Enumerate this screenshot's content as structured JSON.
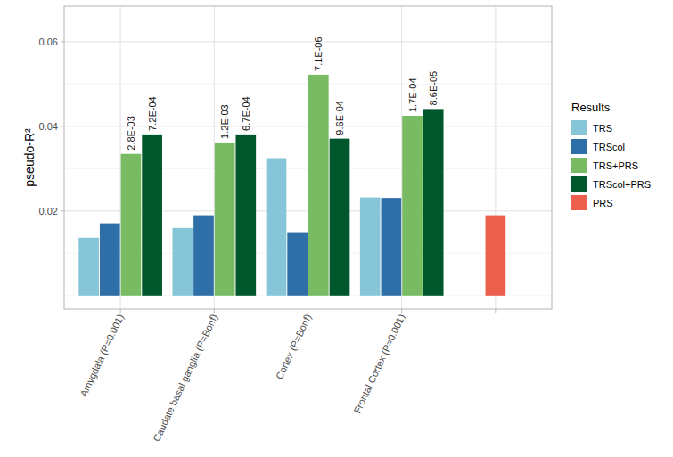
{
  "chart_data": {
    "type": "bar",
    "y_label": "pseudo-R²",
    "legend_title": "Results",
    "legend": "right",
    "grid": true,
    "categories": [
      "Amygdala (P=0.001)",
      "Caudate basal ganglia (P=Bonf)",
      "Cortex (P=Bonf)",
      "Frontal Cortex (P=0.001)",
      null
    ],
    "series": [
      {
        "name": "TRS",
        "color": "#87c6d8",
        "values": [
          0.0137,
          0.016,
          0.0325,
          0.0232,
          null
        ],
        "labels": [
          null,
          null,
          null,
          null,
          null
        ]
      },
      {
        "name": "TRScol",
        "color": "#2e6fa8",
        "values": [
          0.0171,
          0.019,
          0.015,
          0.0231,
          null
        ],
        "labels": [
          null,
          null,
          null,
          null,
          null
        ]
      },
      {
        "name": "TRS+PRS",
        "color": "#78bb63",
        "values": [
          0.0335,
          0.0362,
          0.0522,
          0.0425,
          null
        ],
        "labels": [
          "2.8E-03",
          "1.2E-03",
          "7.1E-06",
          "1.7E-04",
          null
        ]
      },
      {
        "name": "TRScol+PRS",
        "color": "#00572b",
        "values": [
          0.0381,
          0.0381,
          0.0371,
          0.0441,
          null
        ],
        "labels": [
          "7.2E-04",
          "6.7E-04",
          "9.6E-04",
          "8.6E-05",
          null
        ]
      },
      {
        "name": "PRS",
        "color": "#ec5f4d",
        "values": [
          null,
          null,
          null,
          null,
          0.019
        ],
        "labels": [
          null,
          null,
          null,
          null,
          null
        ]
      }
    ],
    "ylim": [
      -0.0032,
      0.0684
    ],
    "yticks": [
      0.02,
      0.04,
      0.06
    ]
  }
}
